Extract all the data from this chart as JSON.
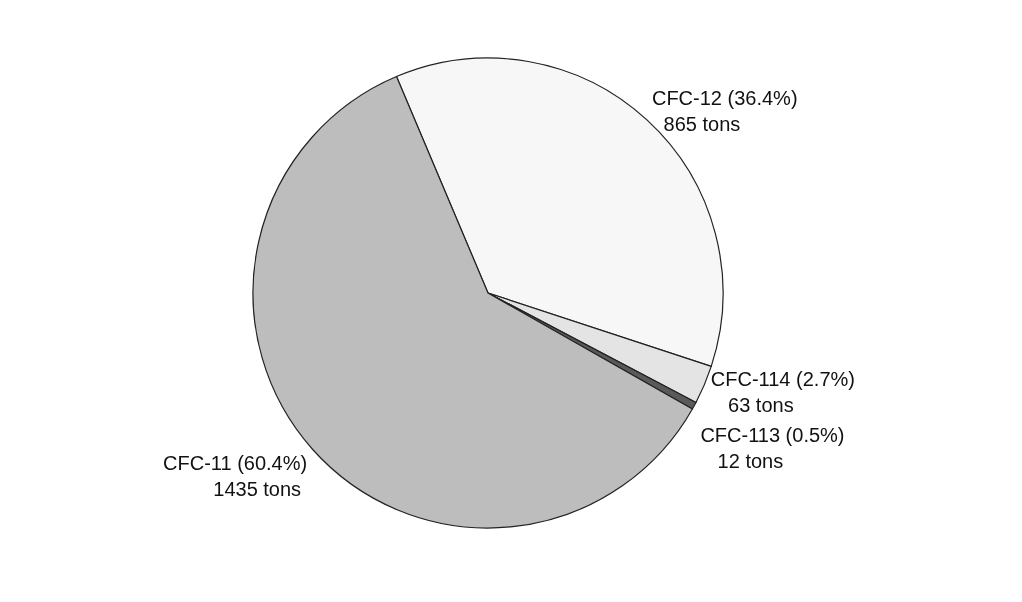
{
  "chart_data": {
    "type": "pie",
    "categories": [
      "CFC-12 (36.4%)",
      "CFC-114 (2.7%)",
      "CFC-113 (0.5%)",
      "CFC-11 (60.4%)"
    ],
    "values": [
      865,
      63,
      12,
      1435
    ],
    "value_labels": [
      "865 tons",
      "63 tons",
      "12 tons",
      "1435 tons"
    ],
    "colors": [
      "#f7f7f7",
      "#e4e4e4",
      "#5a5a5a",
      "#bdbdbd"
    ],
    "legend": false
  }
}
